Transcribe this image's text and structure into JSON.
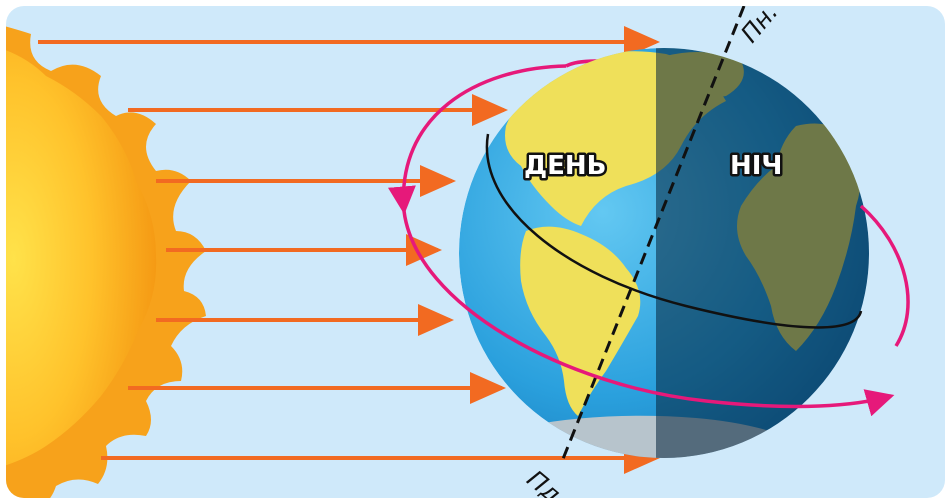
{
  "labels": {
    "day": "ДЕНЬ",
    "night": "НІЧ",
    "north_pole": "Пн.",
    "south_pole": "Пд."
  },
  "colors": {
    "background": "#cfe9fa",
    "sun": "#f7a21b",
    "rays": "#f26a21",
    "orbit": "#e6197a",
    "ocean_day": "#2aa6e0",
    "land_day": "#efe05a",
    "axis": "#111111"
  }
}
